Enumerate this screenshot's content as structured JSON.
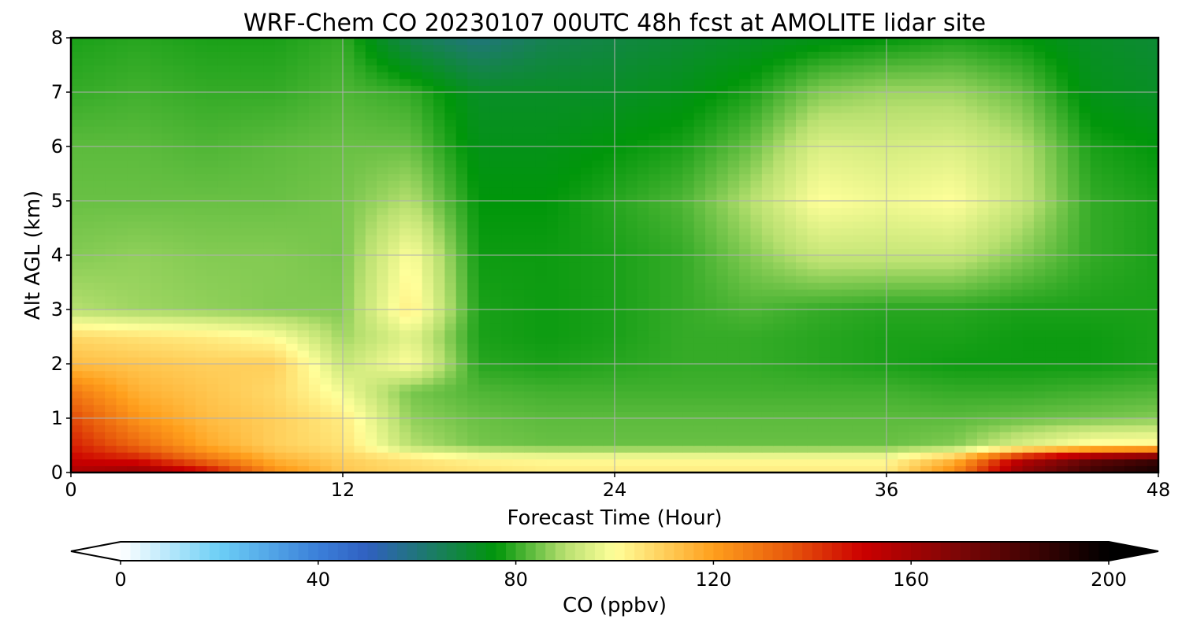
{
  "chart_data": {
    "type": "heatmap",
    "title": "WRF-Chem CO  20230107 00UTC 48h fcst at AMOLITE lidar site",
    "xlabel": "Forecast Time (Hour)",
    "ylabel": "Alt AGL (km)",
    "xlim": [
      0,
      48
    ],
    "ylim": [
      0,
      8
    ],
    "xticks": [
      0,
      12,
      24,
      36,
      48
    ],
    "yticks": [
      0,
      1,
      2,
      3,
      4,
      5,
      6,
      7,
      8
    ],
    "grid": true,
    "colorbar": {
      "label": "CO  (ppbv)",
      "range": [
        0,
        200
      ],
      "ticks": [
        0,
        40,
        80,
        120,
        160,
        200
      ],
      "extend": "both",
      "stops": [
        {
          "value": 0,
          "color": "#ffffff"
        },
        {
          "value": 20,
          "color": "#6ccff6"
        },
        {
          "value": 40,
          "color": "#3b7fd9"
        },
        {
          "value": 50,
          "color": "#3060c0"
        },
        {
          "value": 65,
          "color": "#188058"
        },
        {
          "value": 76,
          "color": "#00960a"
        },
        {
          "value": 90,
          "color": "#b8e070"
        },
        {
          "value": 100,
          "color": "#ffff9a"
        },
        {
          "value": 120,
          "color": "#ff9f1c"
        },
        {
          "value": 135,
          "color": "#e85a0c"
        },
        {
          "value": 150,
          "color": "#cc0000"
        },
        {
          "value": 170,
          "color": "#7a0606"
        },
        {
          "value": 200,
          "color": "#000000"
        }
      ]
    },
    "x_hours": [
      0,
      3,
      6,
      9,
      12,
      15,
      18,
      21,
      24,
      27,
      30,
      33,
      36,
      39,
      42,
      45,
      48
    ],
    "altitudes_km": [
      0,
      0.25,
      0.5,
      1,
      1.5,
      2,
      2.5,
      3,
      4,
      5,
      6,
      7,
      8
    ],
    "values_ppbv": [
      [
        158,
        165,
        150,
        124,
        112,
        108,
        106,
        104,
        104,
        104,
        104,
        104,
        104,
        125,
        165,
        185,
        195
      ],
      [
        150,
        145,
        130,
        116,
        110,
        106,
        102,
        101,
        101,
        101,
        101,
        101,
        101,
        115,
        155,
        175,
        185
      ],
      [
        145,
        132,
        118,
        110,
        106,
        90,
        85,
        84,
        84,
        84,
        84,
        84,
        84,
        86,
        95,
        102,
        103
      ],
      [
        138,
        122,
        114,
        110,
        104,
        87,
        84,
        83,
        83,
        83,
        83,
        83,
        83,
        83,
        84,
        85,
        86
      ],
      [
        128,
        116,
        112,
        108,
        98,
        85,
        82,
        81,
        81,
        81,
        81,
        81,
        81,
        80,
        80,
        81,
        82
      ],
      [
        114,
        112,
        110,
        110,
        92,
        100,
        79,
        78,
        79,
        80,
        80,
        79,
        78,
        77,
        77,
        77,
        78
      ],
      [
        108,
        106,
        104,
        100,
        88,
        96,
        78,
        77,
        78,
        80,
        80,
        79,
        78,
        78,
        77,
        77,
        78
      ],
      [
        90,
        88,
        87,
        86,
        86,
        104,
        78,
        77,
        78,
        80,
        82,
        80,
        79,
        79,
        78,
        78,
        78
      ],
      [
        86,
        87,
        86,
        86,
        85,
        100,
        77,
        77,
        78,
        80,
        86,
        92,
        92,
        92,
        86,
        80,
        78
      ],
      [
        84,
        84,
        84,
        84,
        85,
        90,
        76,
        76,
        79,
        82,
        90,
        100,
        98,
        100,
        92,
        80,
        78
      ],
      [
        83,
        83,
        82,
        83,
        84,
        84,
        74,
        74,
        76,
        78,
        84,
        95,
        94,
        95,
        90,
        78,
        76
      ],
      [
        80,
        81,
        80,
        80,
        82,
        80,
        72,
        72,
        72,
        74,
        78,
        86,
        88,
        88,
        84,
        74,
        72
      ],
      [
        78,
        79,
        78,
        78,
        80,
        66,
        60,
        66,
        68,
        70,
        72,
        74,
        76,
        78,
        76,
        72,
        70
      ]
    ]
  }
}
